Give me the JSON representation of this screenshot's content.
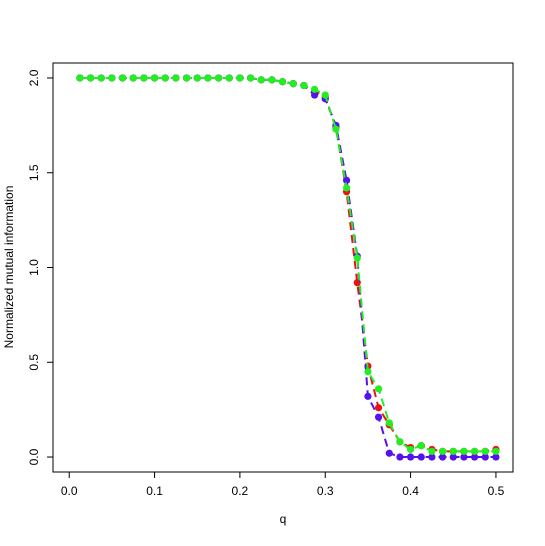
{
  "chart_data": {
    "type": "line",
    "xlabel": "q",
    "ylabel": "Normalized mutual information",
    "x": [
      0.0125,
      0.025,
      0.0375,
      0.05,
      0.0625,
      0.075,
      0.0875,
      0.1,
      0.1125,
      0.125,
      0.1375,
      0.15,
      0.1625,
      0.175,
      0.1875,
      0.2,
      0.2125,
      0.225,
      0.2375,
      0.25,
      0.2625,
      0.275,
      0.2875,
      0.3,
      0.3125,
      0.325,
      0.3375,
      0.35,
      0.3625,
      0.375,
      0.3875,
      0.4,
      0.4125,
      0.425,
      0.4375,
      0.45,
      0.4625,
      0.475,
      0.4875,
      0.5
    ],
    "series": [
      {
        "color": "#ee1111",
        "values": [
          2,
          2,
          2,
          2,
          2,
          2,
          2,
          2,
          2,
          2,
          2,
          2,
          2,
          2,
          2,
          2,
          2,
          1.99,
          1.99,
          1.98,
          1.97,
          1.96,
          1.93,
          1.9,
          1.74,
          1.4,
          0.92,
          0.48,
          0.26,
          0.17,
          0.08,
          0.05,
          0.06,
          0.04,
          0.03,
          0.03,
          0.03,
          0.03,
          0.03,
          0.04
        ]
      },
      {
        "color": "#5511ee",
        "values": [
          2,
          2,
          2,
          2,
          2,
          2,
          2,
          2,
          2,
          2,
          2,
          2,
          2,
          2,
          2,
          2,
          2,
          1.99,
          1.99,
          1.98,
          1.97,
          1.96,
          1.91,
          1.89,
          1.75,
          1.46,
          1.06,
          0.32,
          0.21,
          0.02,
          0,
          0,
          0,
          0,
          0,
          0,
          0,
          0,
          0,
          0
        ]
      },
      {
        "color": "#22ee22",
        "values": [
          2,
          2,
          2,
          2,
          2,
          2,
          2,
          2,
          2,
          2,
          2,
          2,
          2,
          2,
          2,
          2,
          2,
          1.99,
          1.99,
          1.98,
          1.97,
          1.96,
          1.94,
          1.91,
          1.73,
          1.42,
          1.05,
          0.45,
          0.36,
          0.18,
          0.08,
          0.04,
          0.06,
          0.03,
          0.03,
          0.03,
          0.03,
          0.03,
          0.03,
          0.03
        ]
      }
    ],
    "xlim": [
      -0.019,
      0.52
    ],
    "ylim": [
      -0.079,
      2.079
    ],
    "xticks": [
      {
        "value": 0,
        "label": "0.0"
      },
      0.1,
      0.2,
      0.3,
      0.4,
      0.5
    ],
    "yticks": [
      {
        "value": 0,
        "label": "0.0"
      },
      0.5,
      {
        "value": 1,
        "label": "1.0"
      },
      1.5,
      {
        "value": 2,
        "label": "2.0"
      }
    ]
  }
}
